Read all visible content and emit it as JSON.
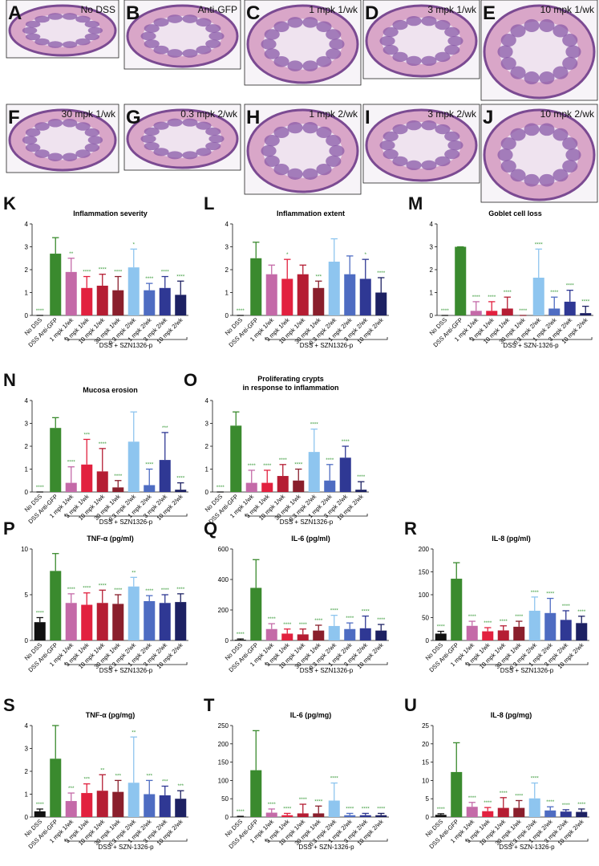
{
  "images": [
    {
      "letter": "A",
      "label": "No DSS"
    },
    {
      "letter": "B",
      "label": "Anti-GFP"
    },
    {
      "letter": "C",
      "label": "1 mpk 1/wk"
    },
    {
      "letter": "D",
      "label": "3 mpk 1/wk"
    },
    {
      "letter": "E",
      "label": "10 mpk 1/wk"
    },
    {
      "letter": "F",
      "label": "30 mpk 1/wk"
    },
    {
      "letter": "G",
      "label": "0.3 mpk 2/wk"
    },
    {
      "letter": "H",
      "label": "1 mpk 2/wk"
    },
    {
      "letter": "I",
      "label": "3 mpk 2/wk"
    },
    {
      "letter": "J",
      "label": "10 mpk 2/wk"
    }
  ],
  "chart_data": [
    {
      "type": "bar",
      "panel": "K",
      "title": "Inflammation severity",
      "categories": [
        "No DSS",
        "DSS Anti-GFP",
        "1 mpk 1/wk",
        "3 mpk 1/wk",
        "10 mpk 1/wk",
        "30 mpk 1/wk",
        "0.3 mpk 2/wk",
        "1 mpk 2/wk",
        "3 mpk 2/wk",
        "10 mpk 2/wk"
      ],
      "colors": [
        "#111111",
        "#3a8a2e",
        "#c46aa8",
        "#e2213f",
        "#b51d33",
        "#8a1f2c",
        "#8ec5ef",
        "#4e6cc2",
        "#2f3894",
        "#1d2163"
      ],
      "values": [
        0,
        2.7,
        1.9,
        1.2,
        1.3,
        1.1,
        2.1,
        1.1,
        1.2,
        0.9
      ],
      "errors": [
        0,
        0.7,
        0.6,
        0.5,
        0.5,
        0.6,
        0.8,
        0.3,
        0.5,
        0.6
      ],
      "annotations": [
        "****",
        null,
        "**",
        "****",
        "****",
        "****",
        "*",
        "****",
        "****",
        "****"
      ],
      "group_label": "DSS + SZN1326-p",
      "ylim": [
        0,
        4
      ],
      "yticks": [
        0,
        1,
        2,
        3,
        4
      ]
    },
    {
      "type": "bar",
      "panel": "L",
      "title": "Inflammation extent",
      "categories": [
        "No DSS",
        "DSS Anti-GFP",
        "1 mpk 1/wk",
        "3 mpk 1/wk",
        "10 mpk 1/wk",
        "30 mpk 1/wk",
        "0.3 mpk 2/wk",
        "1 mpk 2/wk",
        "3 mpk 2/wk",
        "10 mpk 2/wk"
      ],
      "colors": [
        "#111111",
        "#3a8a2e",
        "#c46aa8",
        "#e2213f",
        "#b51d33",
        "#8a1f2c",
        "#8ec5ef",
        "#4e6cc2",
        "#2f3894",
        "#1d2163"
      ],
      "values": [
        0,
        2.5,
        1.8,
        1.6,
        1.8,
        1.2,
        2.35,
        1.8,
        1.6,
        1.0
      ],
      "errors": [
        0,
        0.7,
        0.4,
        0.85,
        0.4,
        0.3,
        1.0,
        0.8,
        0.85,
        0.65
      ],
      "annotations": [
        "****",
        null,
        null,
        "*",
        null,
        "***",
        null,
        null,
        "*",
        "****"
      ],
      "group_label": "DSS + SZN1326-p",
      "ylim": [
        0,
        4
      ],
      "yticks": [
        0,
        1,
        2,
        3,
        4
      ]
    },
    {
      "type": "bar",
      "panel": "M",
      "title": "Goblet cell loss",
      "categories": [
        "No DSS",
        "DSS Anti-GFP",
        "1 mpk 1/wk",
        "3 mpk 1/wk",
        "10 mpk 1/wk",
        "30 mpk 1/wk",
        "0.3 mpk 2/wk",
        "1 mpk 2/wk",
        "3 mpk 2/wk",
        "10 mpk 2/wk"
      ],
      "colors": [
        "#111111",
        "#3a8a2e",
        "#c46aa8",
        "#e2213f",
        "#b51d33",
        "#8a1f2c",
        "#8ec5ef",
        "#4e6cc2",
        "#2f3894",
        "#1d2163"
      ],
      "values": [
        0,
        3.0,
        0.2,
        0.2,
        0.3,
        0,
        1.65,
        0.3,
        0.6,
        0.1
      ],
      "errors": [
        0,
        0,
        0.4,
        0.4,
        0.5,
        0,
        1.25,
        0.5,
        0.5,
        0.3
      ],
      "annotations": [
        "****",
        null,
        "****",
        "****",
        "****",
        "****",
        "****",
        "****",
        "****",
        "****"
      ],
      "group_label": "DSS + SZN-1326-p",
      "ylim": [
        0,
        4
      ],
      "yticks": [
        0,
        1,
        2,
        3,
        4
      ]
    },
    {
      "type": "bar",
      "panel": "N",
      "title": "Mucosa erosion",
      "categories": [
        "No DSS",
        "DSS Anti-GFP",
        "1 mpk 1/wk",
        "3 mpk 1/wk",
        "10 mpk 1/wk",
        "30 mpk 1/wk",
        "0.3 mpk 2/wk",
        "1 mpk 2/wk",
        "3 mpk 2/wk",
        "10 mpk 2/wk"
      ],
      "colors": [
        "#111111",
        "#3a8a2e",
        "#c46aa8",
        "#e2213f",
        "#b51d33",
        "#8a1f2c",
        "#8ec5ef",
        "#4e6cc2",
        "#2f3894",
        "#1d2163"
      ],
      "values": [
        0,
        2.8,
        0.4,
        1.2,
        0.9,
        0.2,
        2.2,
        0.3,
        1.4,
        0.1
      ],
      "errors": [
        0,
        0.45,
        0.7,
        1.1,
        1.0,
        0.3,
        1.3,
        0.7,
        1.2,
        0.3
      ],
      "annotations": [
        "****",
        null,
        "****",
        "***",
        "****",
        "****",
        null,
        "****",
        "***",
        "****"
      ],
      "group_label": "DSS + SZN1326-p",
      "ylim": [
        0,
        4
      ],
      "yticks": [
        0,
        1,
        2,
        3,
        4
      ]
    },
    {
      "type": "bar",
      "panel": "O",
      "title": [
        "Proliferating crypts",
        "in response to inflammation"
      ],
      "categories": [
        "No DSS",
        "DSS Anti-GFP",
        "1 mpk 1/wk",
        "3 mpk 1/wk",
        "10 mpk 1/wk",
        "30 mpk 1/wk",
        "0.3 mpk 2/wk",
        "1 mpk 2/wk",
        "3 mpk 2/wk",
        "10 mpk 2/wk"
      ],
      "colors": [
        "#111111",
        "#3a8a2e",
        "#c46aa8",
        "#e2213f",
        "#b51d33",
        "#8a1f2c",
        "#8ec5ef",
        "#4e6cc2",
        "#2f3894",
        "#1d2163"
      ],
      "values": [
        0,
        2.9,
        0.4,
        0.4,
        0.7,
        0.5,
        1.75,
        0.5,
        1.5,
        0.1
      ],
      "errors": [
        0,
        0.6,
        0.55,
        0.55,
        0.5,
        0.5,
        1.0,
        0.7,
        0.5,
        0.35
      ],
      "annotations": [
        "****",
        null,
        "****",
        "****",
        "****",
        "****",
        "****",
        "****",
        "****",
        "****"
      ],
      "group_label": "DSS + SZN1326-p",
      "ylim": [
        0,
        4
      ],
      "yticks": [
        0,
        1,
        2,
        3,
        4
      ]
    },
    {
      "type": "bar",
      "panel": "P",
      "title": "TNF-α (pg/ml)",
      "categories": [
        "No DSS",
        "DSS Anti-GFP",
        "1 mpk 1/wk",
        "3 mpk 1/wk",
        "10 mpk 1/wk",
        "30 mpk 1/wk",
        "0.3 mpk 2/wk",
        "1 mpk 2/wk",
        "3 mpk 2/wk",
        "10 mpk 2/wk"
      ],
      "colors": [
        "#111111",
        "#3a8a2e",
        "#c46aa8",
        "#e2213f",
        "#b51d33",
        "#8a1f2c",
        "#8ec5ef",
        "#4e6cc2",
        "#2f3894",
        "#1d2163"
      ],
      "values": [
        2.0,
        7.6,
        4.1,
        3.9,
        4.1,
        4.0,
        5.9,
        4.3,
        4.1,
        4.2
      ],
      "errors": [
        0.5,
        1.9,
        1.0,
        1.3,
        1.4,
        1.0,
        1.0,
        0.6,
        0.9,
        0.9
      ],
      "annotations": [
        "****",
        null,
        "****",
        "****",
        "****",
        "****",
        "**",
        "****",
        "****",
        "****"
      ],
      "group_label": "DSS + SZN1326-p",
      "ylim": [
        0,
        10
      ],
      "yticks": [
        0,
        5,
        10
      ]
    },
    {
      "type": "bar",
      "panel": "Q",
      "title": "IL-6 (pg/ml)",
      "categories": [
        "No DSS",
        "DSS Anti-GFP",
        "1 mpk 1/wk",
        "3 mpk 1/wk",
        "10 mpk 1/wk",
        "30 mpk 1/wk",
        "0.3 mpk 2/wk",
        "1 mpk 2/wk",
        "3 mpk 2/wk",
        "10 mpk 2/wk"
      ],
      "colors": [
        "#111111",
        "#3a8a2e",
        "#c46aa8",
        "#e2213f",
        "#b51d33",
        "#8a1f2c",
        "#8ec5ef",
        "#4e6cc2",
        "#2f3894",
        "#1d2163"
      ],
      "values": [
        5,
        345,
        75,
        45,
        40,
        65,
        95,
        75,
        80,
        65
      ],
      "errors": [
        5,
        185,
        35,
        30,
        35,
        35,
        70,
        40,
        80,
        40
      ],
      "annotations": [
        "****",
        null,
        "****",
        "****",
        "****",
        "****",
        "****",
        "****",
        "****",
        "****"
      ],
      "group_label": "DSS + SZN1326-p",
      "ylim": [
        0,
        600
      ],
      "yticks": [
        0,
        200,
        400,
        600
      ]
    },
    {
      "type": "bar",
      "panel": "R",
      "title": "IL-8 (pg/ml)",
      "categories": [
        "No DSS",
        "DSS Anti-GFP",
        "1 mpk 1/wk",
        "3 mpk 1/wk",
        "10 mpk 1/wk",
        "30 mpk 1/wk",
        "0.3 mpk 2/wk",
        "1 mpk 2/wk",
        "3 mpk 2/wk",
        "10 mpk 2/wk"
      ],
      "colors": [
        "#111111",
        "#3a8a2e",
        "#c46aa8",
        "#e2213f",
        "#b51d33",
        "#8a1f2c",
        "#8ec5ef",
        "#4e6cc2",
        "#2f3894",
        "#1d2163"
      ],
      "values": [
        15,
        135,
        32,
        20,
        22,
        30,
        65,
        60,
        45,
        38
      ],
      "errors": [
        5,
        35,
        10,
        8,
        10,
        12,
        30,
        32,
        20,
        15
      ],
      "annotations": [
        "****",
        null,
        "****",
        "****",
        "****",
        "****",
        "****",
        "****",
        "****",
        "****"
      ],
      "group_label": "DSS + SZN1326-p",
      "ylim": [
        0,
        200
      ],
      "yticks": [
        0,
        50,
        100,
        150,
        200
      ]
    },
    {
      "type": "bar",
      "panel": "S",
      "title": "TNF-α (pg/mg)",
      "categories": [
        "No DSS",
        "DSS Anti-GFP",
        "1 mpk 1/wk",
        "3 mpk 1/wk",
        "10 mpk 1/wk",
        "30 mpk 1/wk",
        "0.3 mpk 2/wk",
        "1 mpk 2/wk",
        "3 mpk 2/wk",
        "10 mpk 2/wk"
      ],
      "colors": [
        "#111111",
        "#3a8a2e",
        "#c46aa8",
        "#e2213f",
        "#b51d33",
        "#8a1f2c",
        "#8ec5ef",
        "#4e6cc2",
        "#2f3894",
        "#1d2163"
      ],
      "values": [
        0.25,
        2.55,
        0.7,
        1.05,
        1.15,
        1.1,
        1.5,
        1.0,
        0.95,
        0.8
      ],
      "errors": [
        0.1,
        1.45,
        0.35,
        0.4,
        0.7,
        0.5,
        2.0,
        0.6,
        0.4,
        0.35
      ],
      "annotations": [
        "****",
        null,
        "***",
        "***",
        "**",
        "***",
        "**",
        "***",
        "***",
        "***"
      ],
      "group_label": "DSS + SZN-1326-p",
      "ylim": [
        0,
        4
      ],
      "yticks": [
        0,
        1,
        2,
        3,
        4
      ]
    },
    {
      "type": "bar",
      "panel": "T",
      "title": "IL-6 (pg/mg)",
      "categories": [
        "No DSS",
        "DSS Anti-GFP",
        "1 mpk 1/wk",
        "3 mpk 1/wk",
        "10 mpk 1/wk",
        "30 mpk 1/wk",
        "0.3 mpk 2/wk",
        "1 mpk 2/wk",
        "3 mpk 2/wk",
        "10 mpk 2/wk"
      ],
      "colors": [
        "#111111",
        "#3a8a2e",
        "#c46aa8",
        "#e2213f",
        "#b51d33",
        "#8a1f2c",
        "#8ec5ef",
        "#4e6cc2",
        "#2f3894",
        "#1d2163"
      ],
      "values": [
        1,
        128,
        12,
        5,
        10,
        10,
        45,
        5,
        5,
        5
      ],
      "errors": [
        1,
        108,
        10,
        5,
        25,
        20,
        48,
        5,
        5,
        5
      ],
      "annotations": [
        "****",
        null,
        "****",
        "****",
        "****",
        "****",
        "****",
        "****",
        "****",
        "****"
      ],
      "group_label": "DSS + SZN-1326-p",
      "ylim": [
        0,
        250
      ],
      "yticks": [
        0,
        50,
        100,
        150,
        200,
        250
      ]
    },
    {
      "type": "bar",
      "panel": "U",
      "title": "IL-8 (pg/mg)",
      "categories": [
        "No DSS",
        "DSS Anti-GFP",
        "1 mpk 1/wk",
        "3 mpk 1/wk",
        "10 mpk 1/wk",
        "30 mpk 1/wk",
        "0.3 mpk 2/wk",
        "1 mpk 2/wk",
        "3 mpk 2/wk",
        "10 mpk 2/wk"
      ],
      "colors": [
        "#111111",
        "#3a8a2e",
        "#c46aa8",
        "#e2213f",
        "#b51d33",
        "#8a1f2c",
        "#8ec5ef",
        "#4e6cc2",
        "#2f3894",
        "#1d2163"
      ],
      "values": [
        0.6,
        12.3,
        2.8,
        1.6,
        2.5,
        2.5,
        5.1,
        1.8,
        1.5,
        1.4
      ],
      "errors": [
        0.3,
        8,
        1.2,
        1.0,
        2.8,
        2.0,
        4.2,
        1.0,
        0.5,
        0.8
      ],
      "annotations": [
        "****",
        null,
        "****",
        "****",
        "****",
        "****",
        "****",
        "****",
        "****",
        "****"
      ],
      "group_label": "DSS + SZN-1326-p",
      "ylim": [
        0,
        25
      ],
      "yticks": [
        0,
        5,
        10,
        15,
        20,
        25
      ]
    }
  ]
}
